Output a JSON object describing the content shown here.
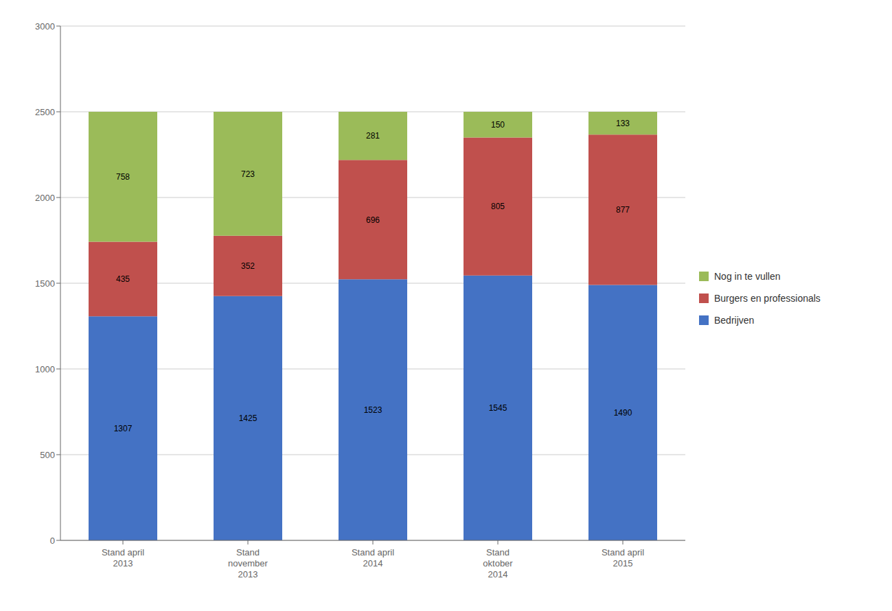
{
  "chart_data": {
    "type": "bar",
    "stacked": true,
    "data_labels": true,
    "grid": true,
    "legend": "right",
    "categories": [
      "Stand april\n2013",
      "Stand\nnovember\n2013",
      "Stand april\n2014",
      "Stand\noktober\n2014",
      "Stand april\n2015"
    ],
    "series": [
      {
        "name": "Bedrijven",
        "color": "#4472C4",
        "values": [
          1307,
          1425,
          1523,
          1545,
          1490
        ]
      },
      {
        "name": "Burgers en professionals",
        "color": "#C0504D",
        "values": [
          435,
          352,
          696,
          805,
          877
        ]
      },
      {
        "name": "Nog in te vullen",
        "color": "#9BBB59",
        "values": [
          758,
          723,
          281,
          150,
          133
        ]
      }
    ],
    "ylim": [
      0,
      3000
    ],
    "yticks": [
      0,
      500,
      1000,
      1500,
      2000,
      2500,
      3000
    ]
  }
}
